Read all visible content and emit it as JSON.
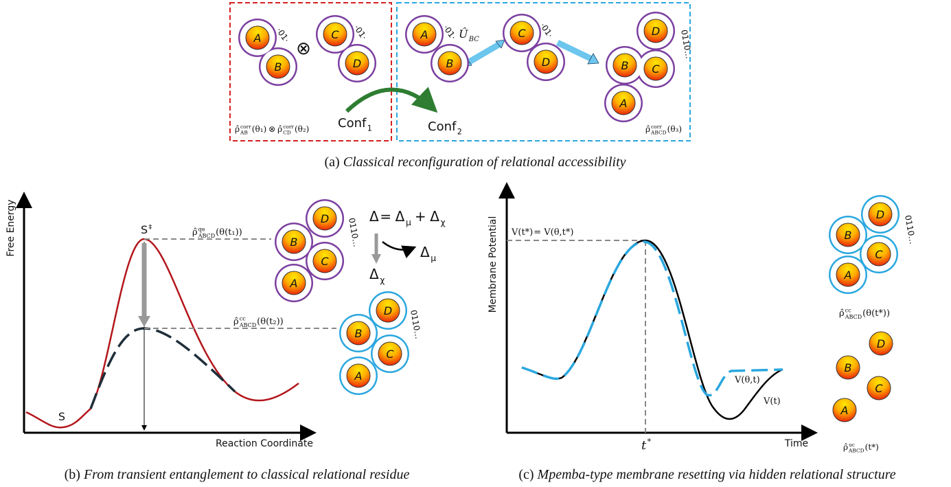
{
  "panel_a": {
    "label": "(a)",
    "caption": "Classical reconfiguration of relational accessibility",
    "clusters": [
      {
        "nodes": [
          "A",
          "B"
        ],
        "tag": "·01·"
      },
      {
        "nodes": [
          "C",
          "D"
        ],
        "tag": "·01·"
      },
      {
        "nodes": [
          "A",
          "B"
        ],
        "tag": "·01·"
      },
      {
        "nodes": [
          "C",
          "D"
        ],
        "tag": "·01·"
      },
      {
        "nodes": [
          "D",
          "B",
          "C",
          "A"
        ],
        "tag": "0110…"
      }
    ],
    "tensor": "⊗",
    "operator": {
      "base": "Û",
      "sub": "BC"
    },
    "conf_1": {
      "base": "Conf",
      "sub": "1"
    },
    "conf_2": {
      "base": "Conf",
      "sub": "2"
    },
    "state_left": {
      "first": {
        "base": "ρ̂",
        "sup": "corr",
        "sub": "AB",
        "arg": "(θ₁)"
      },
      "op": "⊗",
      "second": {
        "base": "ρ̂",
        "sup": "corr",
        "sub": "CD",
        "arg": "(θ₂)"
      }
    },
    "state_right": {
      "base": "ρ̂",
      "sup": "corr",
      "sub": "ABCD",
      "arg": "(θ₃)"
    }
  },
  "panel_b": {
    "label": "(b)",
    "caption": "From transient entanglement to classical relational residue",
    "y_label": "Free Energy",
    "x_label": "Reaction Coordinate",
    "reactant": "S",
    "transition": {
      "base": "S",
      "sup": "‡"
    },
    "state_qe": {
      "base": "ρ̂",
      "sup": "qe",
      "sub": "ABCD",
      "arg": "(θ(t₁))"
    },
    "state_cc": {
      "base": "ρ̂",
      "sup": "cc",
      "sub": "ABCD",
      "arg": "(θ(t₂))"
    },
    "clusters": [
      {
        "nodes": [
          "D",
          "B",
          "C",
          "A"
        ],
        "tag": "0110…"
      },
      {
        "nodes": [
          "D",
          "B",
          "C",
          "A"
        ],
        "tag": "0110…"
      }
    ],
    "gap_equation": {
      "total": "Δ",
      "equals": "=",
      "first": {
        "base": "Δ",
        "sub": "μ"
      },
      "plus": "+",
      "second": {
        "base": "Δ",
        "sub": "χ"
      }
    },
    "released": {
      "base": "Δ",
      "sub": "μ"
    },
    "residue": {
      "base": "Δ",
      "sub": "χ"
    }
  },
  "panel_c": {
    "label": "(c)",
    "caption": "Mpemba-type membrane resetting via hidden relational structure",
    "y_label": "Membrane Potential",
    "x_label": "Time",
    "t_star": {
      "base": "t",
      "sup": "*"
    },
    "matching": {
      "lhs": "V(t*)",
      "eq": "=",
      "rhs": "V(θ,t*)"
    },
    "curve_model": "V(θ,t)",
    "curve_actual": "V(t)",
    "cluster": {
      "nodes": [
        "D",
        "B",
        "C",
        "A"
      ],
      "tag": "0110…"
    },
    "state_cc": {
      "base": "ρ̂",
      "sup": "cc",
      "sub": "ABCD",
      "arg": "(θ(t*))"
    },
    "loose_nodes": [
      "D",
      "B",
      "C",
      "A"
    ],
    "state_uc": {
      "base": "ρ̂",
      "sup": "uc",
      "sub": "ABCD",
      "arg": "(t*)"
    }
  }
}
